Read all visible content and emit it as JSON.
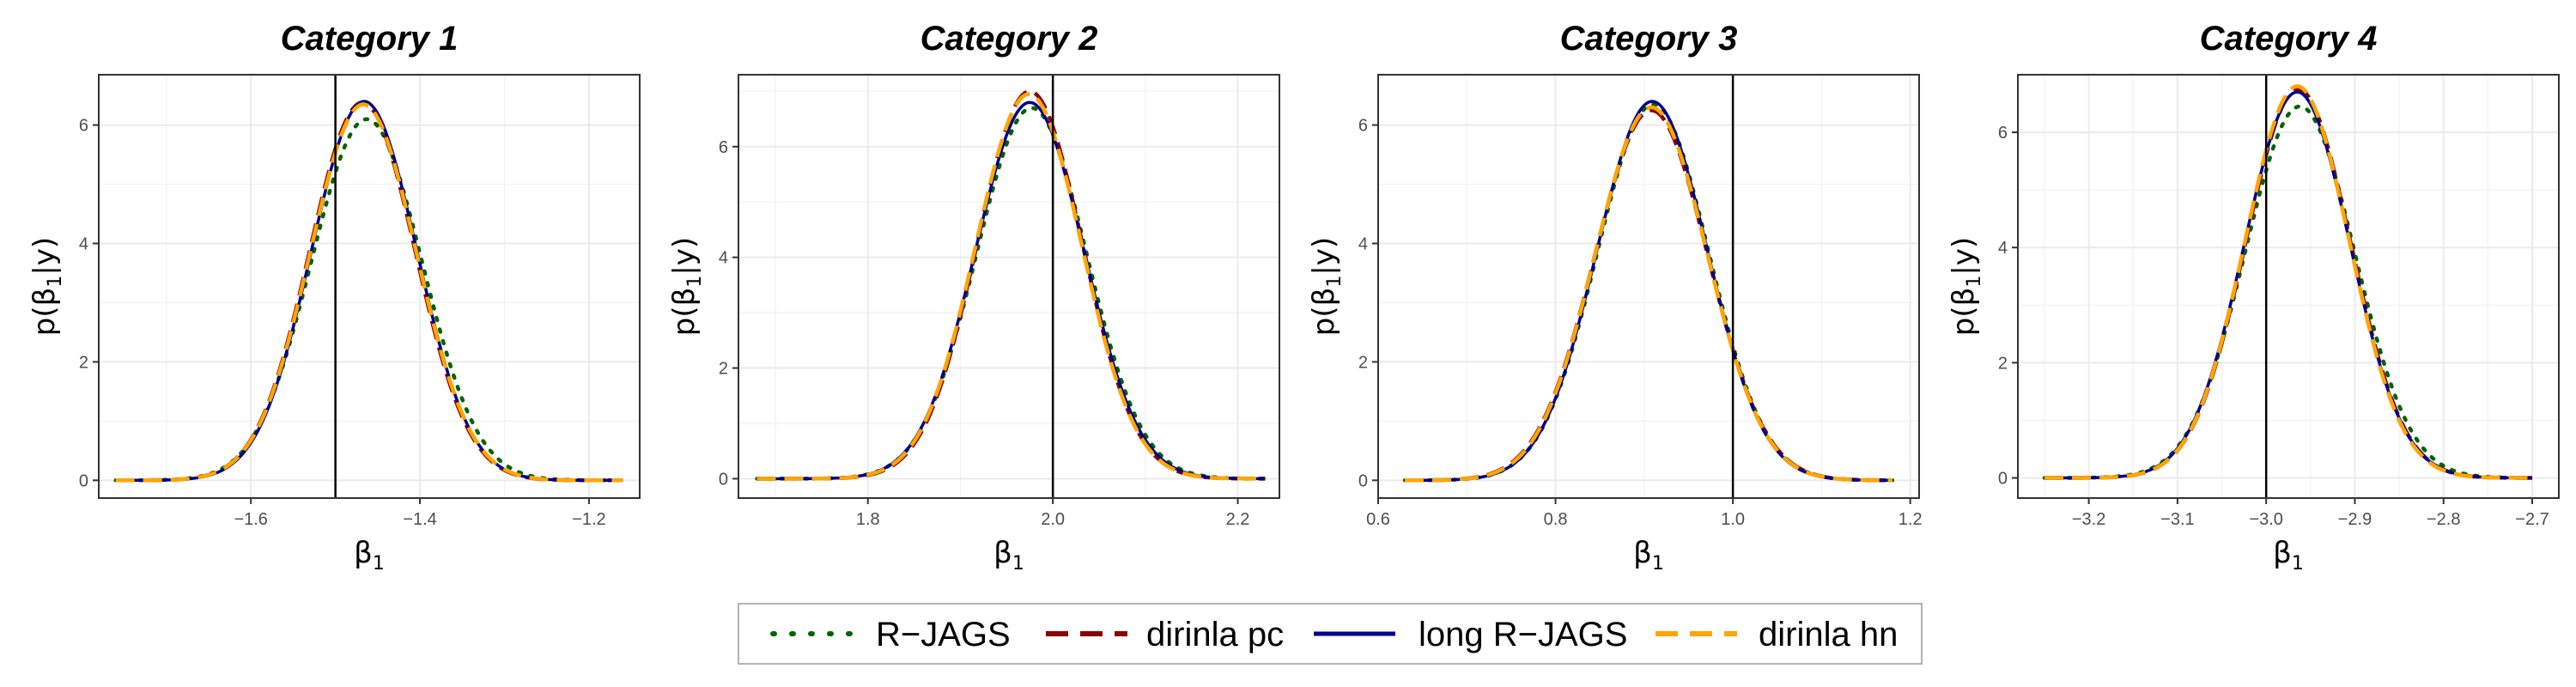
{
  "legend": [
    {
      "label": "R−JAGS",
      "color": "#006400",
      "dash": "dotted"
    },
    {
      "label": "dirinla pc",
      "color": "#8b0000",
      "dash": "dashed"
    },
    {
      "label": "long R−JAGS",
      "color": "#00008b",
      "dash": "solid"
    },
    {
      "label": "dirinla hn",
      "color": "#ffa500",
      "dash": "dashed"
    }
  ],
  "chart_data": [
    {
      "type": "line",
      "title": "Category 1",
      "xlabel": "β₁",
      "ylabel": "p(β₁|y)",
      "xlim": [
        -1.78,
        -1.14
      ],
      "ylim": [
        -0.3,
        6.85
      ],
      "xticks": [
        -1.6,
        -1.4,
        -1.2
      ],
      "xtick_labels": [
        "−1.6",
        "−1.4",
        "−1.2"
      ],
      "yticks": [
        0,
        2,
        4,
        6
      ],
      "ytick_labels": [
        "0",
        "2",
        "4",
        "6"
      ],
      "vline": -1.5,
      "curve_range": [
        -1.76,
        -1.16
      ],
      "series": [
        {
          "name": "R−JAGS",
          "mean": -1.463,
          "peak": 6.1
        },
        {
          "name": "dirinla pc",
          "mean": -1.468,
          "peak": 6.38
        },
        {
          "name": "long R−JAGS",
          "mean": -1.466,
          "peak": 6.4
        },
        {
          "name": "dirinla hn",
          "mean": -1.467,
          "peak": 6.35
        }
      ]
    },
    {
      "type": "line",
      "title": "Category 2",
      "xlabel": "β₁",
      "ylabel": "p(β₁|y)",
      "xlim": [
        1.66,
        2.245
      ],
      "ylim": [
        -0.35,
        7.3
      ],
      "xticks": [
        1.8,
        2.0,
        2.2
      ],
      "xtick_labels": [
        "1.8",
        "2.0",
        "2.2"
      ],
      "yticks": [
        0,
        2,
        4,
        6
      ],
      "ytick_labels": [
        "0",
        "2",
        "4",
        "6"
      ],
      "vline": 2.0,
      "curve_range": [
        1.68,
        2.23
      ],
      "series": [
        {
          "name": "R−JAGS",
          "mean": 1.977,
          "peak": 6.7
        },
        {
          "name": "dirinla pc",
          "mean": 1.975,
          "peak": 7.0
        },
        {
          "name": "long R−JAGS",
          "mean": 1.975,
          "peak": 6.8
        },
        {
          "name": "dirinla hn",
          "mean": 1.974,
          "peak": 6.95
        }
      ]
    },
    {
      "type": "line",
      "title": "Category 3",
      "xlabel": "β₁",
      "ylabel": "p(β₁|y)",
      "xlim": [
        0.6,
        1.21
      ],
      "ylim": [
        -0.3,
        6.85
      ],
      "xticks": [
        0.6,
        0.8,
        1.0,
        1.2
      ],
      "xtick_labels": [
        "0.6",
        "0.8",
        "1.0",
        "1.2"
      ],
      "yticks": [
        0,
        2,
        4,
        6
      ],
      "ytick_labels": [
        "0",
        "2",
        "4",
        "6"
      ],
      "vline": 1.0,
      "curve_range": [
        0.63,
        1.18
      ],
      "series": [
        {
          "name": "R−JAGS",
          "mean": 0.91,
          "peak": 6.35
        },
        {
          "name": "dirinla pc",
          "mean": 0.908,
          "peak": 6.25
        },
        {
          "name": "long R−JAGS",
          "mean": 0.909,
          "peak": 6.4
        },
        {
          "name": "dirinla hn",
          "mean": 0.908,
          "peak": 6.3
        }
      ]
    },
    {
      "type": "line",
      "title": "Category 4",
      "xlabel": "β₁",
      "ylabel": "p(β₁|y)",
      "xlim": [
        -3.28,
        -2.67
      ],
      "ylim": [
        -0.35,
        7.0
      ],
      "xticks": [
        -3.2,
        -3.1,
        -3.0,
        -2.9,
        -2.8,
        -2.7
      ],
      "xtick_labels": [
        "−3.2",
        "−3.1",
        "−3.0",
        "−2.9",
        "−2.8",
        "−2.7"
      ],
      "yticks": [
        0,
        2,
        4,
        6
      ],
      "ytick_labels": [
        "0",
        "2",
        "4",
        "6"
      ],
      "vline": -3.0,
      "curve_range": [
        -3.25,
        -2.7
      ],
      "series": [
        {
          "name": "R−JAGS",
          "mean": -2.962,
          "peak": 6.45
        },
        {
          "name": "dirinla pc",
          "mean": -2.964,
          "peak": 6.75
        },
        {
          "name": "long R−JAGS",
          "mean": -2.965,
          "peak": 6.7
        },
        {
          "name": "dirinla hn",
          "mean": -2.965,
          "peak": 6.8
        }
      ]
    }
  ]
}
